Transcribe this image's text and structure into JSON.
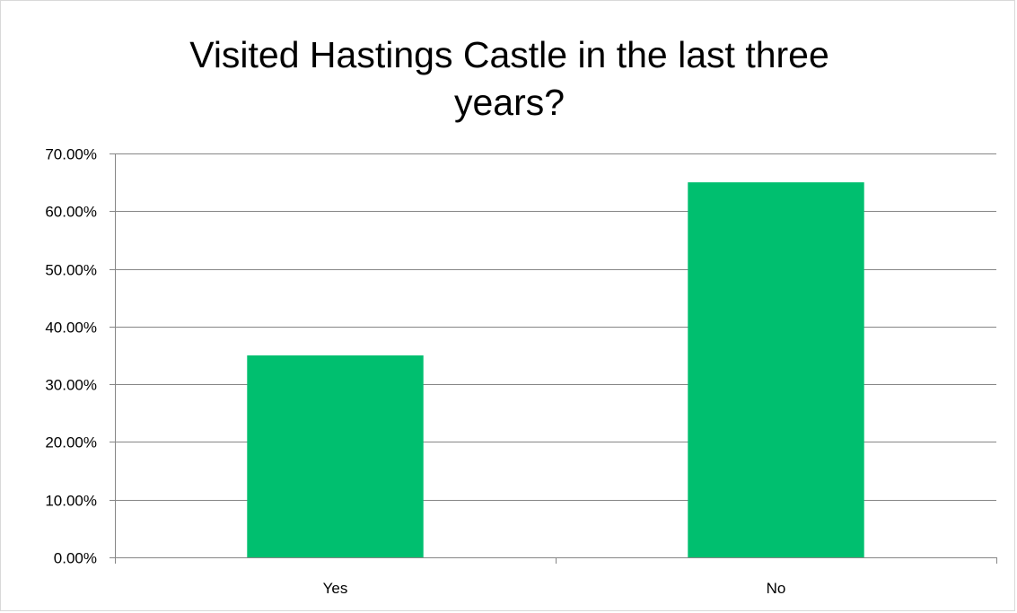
{
  "chart_data": {
    "type": "bar",
    "title_lines": [
      "Visited Hastings Castle in the last three",
      "years?"
    ],
    "categories": [
      "Yes",
      "No"
    ],
    "values": [
      0.35,
      0.65
    ],
    "ylim": [
      0,
      0.7
    ],
    "yticks": [
      0,
      0.1,
      0.2,
      0.3,
      0.4,
      0.5,
      0.6,
      0.7
    ],
    "ytick_labels": [
      "0.00%",
      "10.00%",
      "20.00%",
      "30.00%",
      "40.00%",
      "50.00%",
      "60.00%",
      "70.00%"
    ],
    "xlabel": "",
    "ylabel": "",
    "grid": true,
    "legend": "none",
    "bar_color": "#00bf6f",
    "gridline_color": "#868686"
  }
}
